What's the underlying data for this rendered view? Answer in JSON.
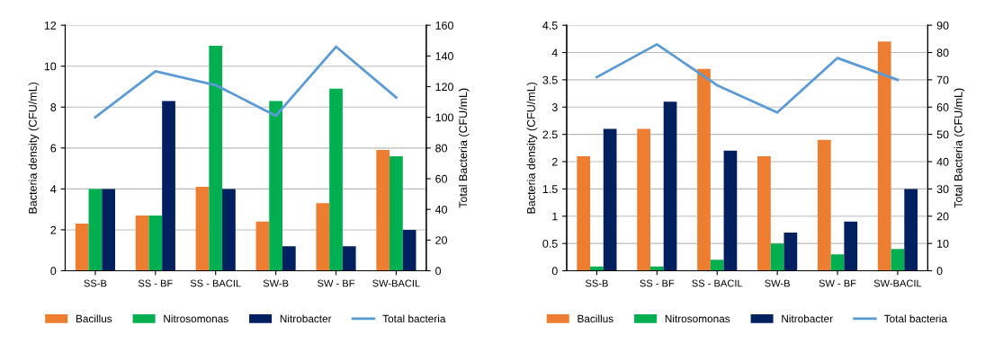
{
  "chart_data": [
    {
      "type": "bar",
      "categories": [
        "SS-B",
        "SS - BF",
        "SS - BACIL",
        "SW-B",
        "SW - BF",
        "SW-BACIL"
      ],
      "ylabel": "Bacteria density (CFU/mL)",
      "y2label": "Total Bacteria (CFU/mL)",
      "ylim": [
        0,
        12
      ],
      "yticks": [
        0,
        2,
        4,
        6,
        8,
        10,
        12
      ],
      "y2lim": [
        0,
        160
      ],
      "y2ticks": [
        0,
        20,
        40,
        60,
        80,
        100,
        120,
        140,
        160
      ],
      "grid": "y",
      "legend": "bottom",
      "series": [
        {
          "name": "Bacillus",
          "color": "#ed7d31",
          "values": [
            2.3,
            2.7,
            4.1,
            2.4,
            3.3,
            5.9
          ]
        },
        {
          "name": "Nitrosomonas",
          "color": "#00b050",
          "values": [
            4,
            2.7,
            11,
            8.3,
            8.9,
            5.6
          ]
        },
        {
          "name": "Nitrobacter",
          "color": "#002060",
          "values": [
            4,
            8.3,
            4,
            1.2,
            1.2,
            2
          ]
        },
        {
          "name": "Total bacteria",
          "type": "line",
          "axis": "y2",
          "color": "#5b9bd5",
          "values": [
            100,
            130,
            121,
            101,
            146,
            113
          ]
        }
      ]
    },
    {
      "type": "bar",
      "categories": [
        "SS-B",
        "SS - BF",
        "SS - BACIL",
        "SW-B",
        "SW - BF",
        "SW-BACIL"
      ],
      "ylabel": "Bacteria density (CFU/mL)",
      "y2label": "Total Bacteria (CFU/mL)",
      "ylim": [
        0,
        4.5
      ],
      "yticks": [
        0,
        0.5,
        1,
        1.5,
        2,
        2.5,
        3,
        3.5,
        4,
        4.5
      ],
      "y2lim": [
        0,
        90
      ],
      "y2ticks": [
        0,
        10,
        20,
        30,
        40,
        50,
        60,
        70,
        80,
        90
      ],
      "grid": "y",
      "legend": "bottom",
      "series": [
        {
          "name": "Bacillus",
          "color": "#ed7d31",
          "values": [
            2.1,
            2.6,
            3.7,
            2.1,
            2.4,
            4.2
          ]
        },
        {
          "name": "Nitrosomonas",
          "color": "#00b050",
          "values": [
            0.08,
            0.08,
            0.2,
            0.5,
            0.3,
            0.4
          ]
        },
        {
          "name": "Nitrobacter",
          "color": "#002060",
          "values": [
            2.6,
            3.1,
            2.2,
            0.7,
            0.9,
            1.5
          ]
        },
        {
          "name": "Total bacteria",
          "type": "line",
          "axis": "y2",
          "color": "#5b9bd5",
          "values": [
            71,
            83,
            68,
            58,
            78,
            70
          ]
        }
      ]
    }
  ]
}
